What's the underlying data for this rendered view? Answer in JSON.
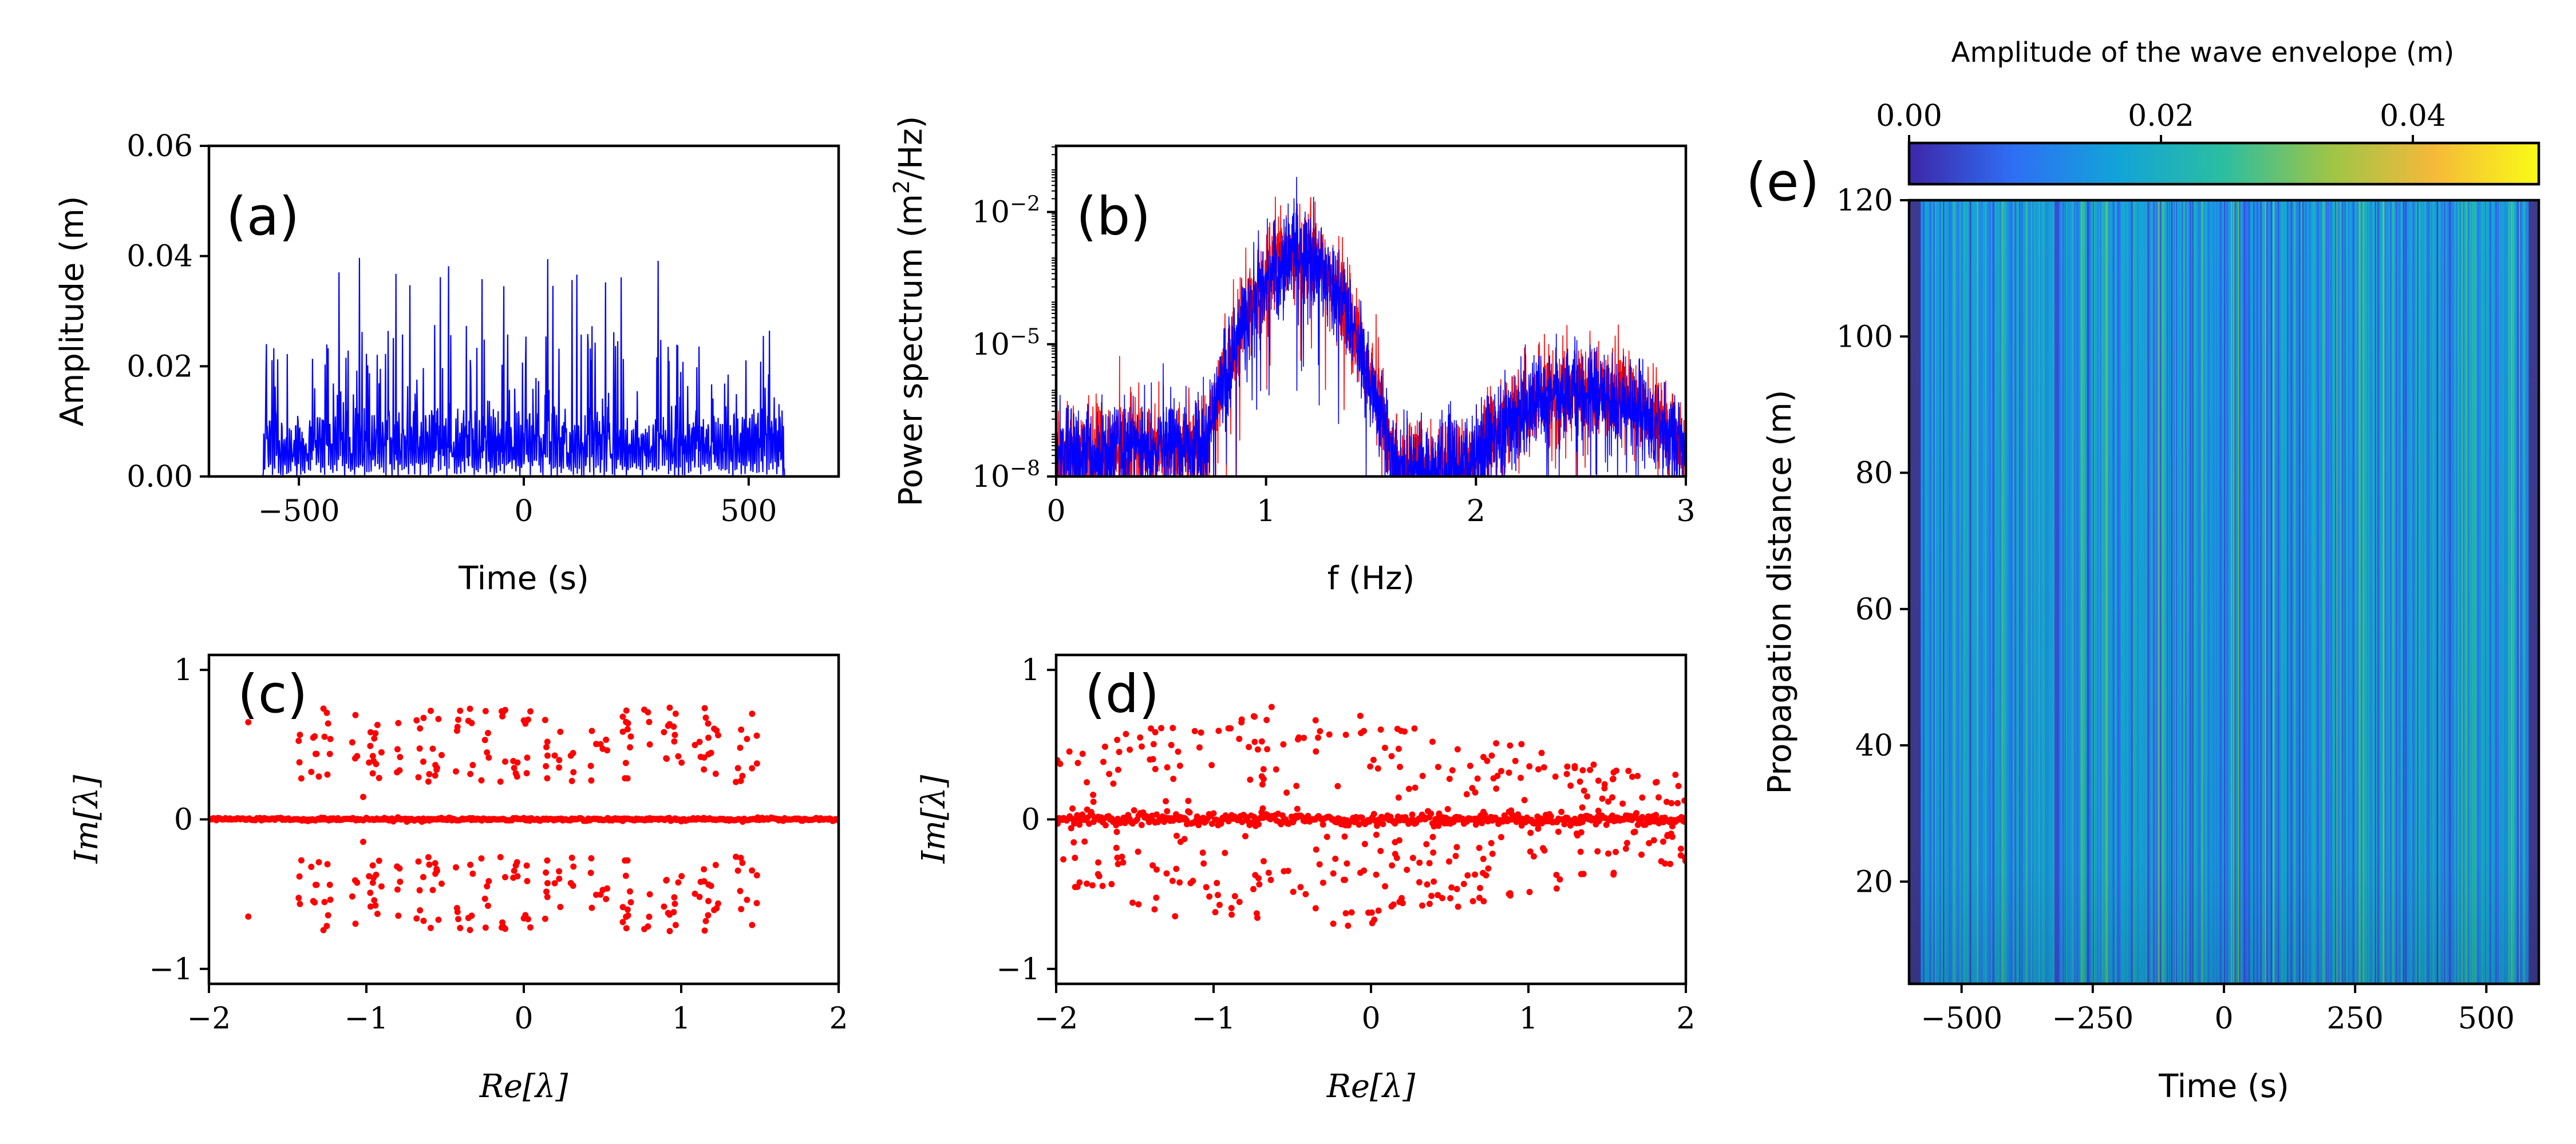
{
  "figure": {
    "panels": [
      "(a)",
      "(b)",
      "(c)",
      "(d)",
      "(e)"
    ]
  },
  "chart_data": [
    {
      "id": "a",
      "type": "line",
      "panel_label": "(a)",
      "xlabel": "Time (s)",
      "ylabel": "Amplitude (m)",
      "xlim": [
        -700,
        700
      ],
      "ylim": [
        0.0,
        0.06
      ],
      "xticks": [
        -500,
        0,
        500
      ],
      "xtick_labels": [
        "−500",
        "0",
        "500"
      ],
      "yticks": [
        0.0,
        0.02,
        0.04,
        0.06
      ],
      "ytick_labels": [
        "0.00",
        "0.02",
        "0.04",
        "0.06"
      ],
      "series": [
        {
          "name": "wave envelope amplitude",
          "color": "#0000ff",
          "x_range": [
            -580,
            580
          ],
          "typical_peak": 0.02,
          "max_value": 0.04,
          "n_points": 1200
        }
      ]
    },
    {
      "id": "b",
      "type": "line",
      "panel_label": "(b)",
      "xlabel": "f (Hz)",
      "ylabel": "Power spectrum (m",
      "ylabel_sup": "2",
      "ylabel_tail": "/Hz)",
      "yscale": "log",
      "xlim": [
        0,
        3
      ],
      "ylim_log10": [
        -8,
        -0.5
      ],
      "xticks": [
        0,
        1,
        2,
        3
      ],
      "xtick_labels": [
        "0",
        "1",
        "2",
        "3"
      ],
      "yticks_log10": [
        -8,
        -5,
        -2
      ],
      "ytick_base": "10",
      "ytick_exponents": [
        "−8",
        "−5",
        "−2"
      ],
      "series": [
        {
          "name": "spectrum 1",
          "color": "#ff0000",
          "peak_f": 1.15,
          "peak_log10": -2.5,
          "second_peak_f": 2.5,
          "second_peak_log10": -5.6
        },
        {
          "name": "spectrum 2",
          "color": "#0000ff",
          "peak_f": 1.15,
          "peak_log10": -2.6,
          "second_peak_f": 2.5,
          "second_peak_log10": -5.7
        }
      ]
    },
    {
      "id": "c",
      "type": "scatter",
      "panel_label": "(c)",
      "xlabel": "Re[λ]",
      "ylabel": "Im[λ]",
      "xlim": [
        -2,
        2
      ],
      "ylim": [
        -1.1,
        1.1
      ],
      "xticks": [
        -2,
        -1,
        0,
        1,
        2
      ],
      "xtick_labels": [
        "−2",
        "−1",
        "0",
        "1",
        "2"
      ],
      "yticks": [
        -1,
        0,
        1
      ],
      "ytick_labels": [
        "−1",
        "0",
        "1"
      ],
      "series": [
        {
          "name": "eigenvalues",
          "color": "#ff0000",
          "re_range": [
            -1.5,
            1.5
          ],
          "im_abs_range": [
            0.25,
            0.75
          ],
          "real_axis_range": [
            -2,
            2
          ],
          "outliers": [
            [
              -1.75,
              0.65
            ],
            [
              -1.75,
              -0.65
            ],
            [
              -1.02,
              0.15
            ],
            [
              -1.02,
              -0.15
            ]
          ]
        }
      ]
    },
    {
      "id": "d",
      "type": "scatter",
      "panel_label": "(d)",
      "xlabel": "Re[λ]",
      "ylabel": "Im[λ]",
      "xlim": [
        -2,
        2
      ],
      "ylim": [
        -1.1,
        1.1
      ],
      "xticks": [
        -2,
        -1,
        0,
        1,
        2
      ],
      "xtick_labels": [
        "−2",
        "−1",
        "0",
        "1",
        "2"
      ],
      "yticks": [
        -1,
        0,
        1
      ],
      "ytick_labels": [
        "−1",
        "0",
        "1"
      ],
      "series": [
        {
          "name": "eigenvalues",
          "color": "#ff0000",
          "re_range": [
            -2,
            2
          ],
          "envelope_max_im": 0.8,
          "envelope_center_re": -0.5,
          "real_axis_range": [
            -2,
            2
          ]
        }
      ]
    },
    {
      "id": "e",
      "type": "heatmap",
      "panel_label": "(e)",
      "xlabel": "Time (s)",
      "ylabel": "Propagation distance (m)",
      "xlim": [
        -600,
        600
      ],
      "ylim": [
        5,
        120
      ],
      "xticks": [
        -500,
        -250,
        0,
        250,
        500
      ],
      "xtick_labels": [
        "−500",
        "−250",
        "0",
        "250",
        "500"
      ],
      "yticks": [
        20,
        40,
        60,
        80,
        100,
        120
      ],
      "ytick_labels": [
        "20",
        "40",
        "60",
        "80",
        "100",
        "120"
      ],
      "colorbar": {
        "label": "Amplitude of the wave envelope (m)",
        "range": [
          0.0,
          0.05
        ],
        "ticks": [
          0.0,
          0.02,
          0.04
        ],
        "tick_labels": [
          "0.00",
          "0.02",
          "0.04"
        ],
        "colors": [
          "#3e26a8",
          "#2e6ff5",
          "#11a4d8",
          "#2cbea0",
          "#9cc548",
          "#f5b93a",
          "#f9fb15"
        ]
      },
      "time_active_range": [
        -580,
        580
      ],
      "background_color": "#3e3a8f"
    }
  ]
}
